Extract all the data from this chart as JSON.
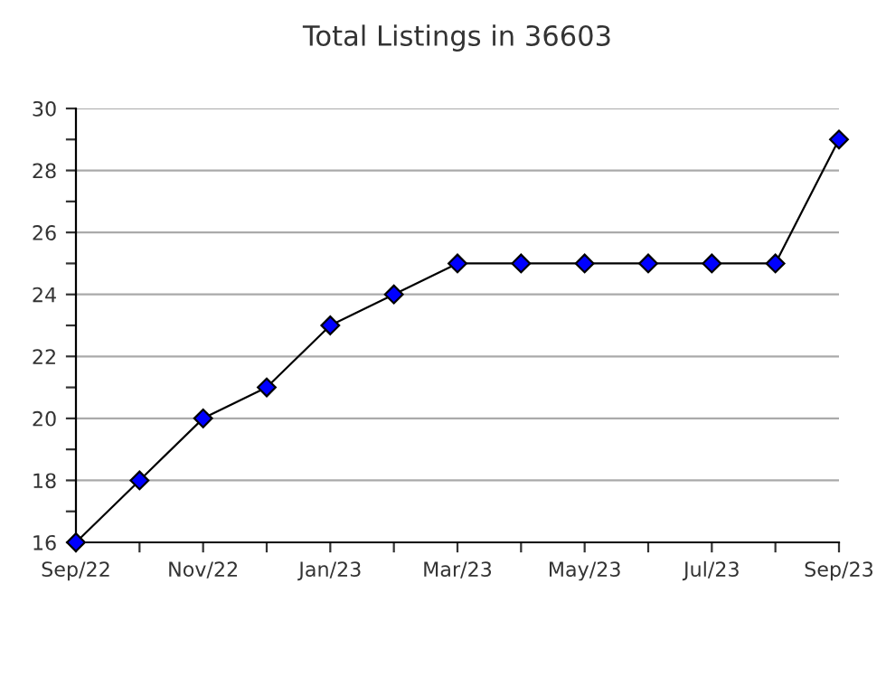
{
  "chart_data": {
    "type": "line",
    "title": "Total Listings in 36603",
    "categories": [
      "Sep/22",
      null,
      "Nov/22",
      null,
      "Jan/23",
      null,
      "Mar/23",
      null,
      "May/23",
      null,
      "Jul/23",
      null,
      "Sep/23"
    ],
    "series": [
      {
        "color": "#0000ff",
        "values": [
          16,
          18,
          20,
          21,
          23,
          24,
          25,
          25,
          25,
          25,
          25,
          25,
          29
        ]
      }
    ],
    "ylim": [
      16,
      30
    ],
    "yticks": [
      16,
      {
        "value": 17,
        "label": null
      },
      18,
      {
        "value": 19,
        "label": null
      },
      20,
      {
        "value": 21,
        "label": null
      },
      22,
      {
        "value": 23,
        "label": null
      },
      24,
      {
        "value": 25,
        "label": null
      },
      26,
      {
        "value": 27,
        "label": null
      },
      28,
      {
        "value": 29,
        "label": null
      },
      30
    ],
    "grid": "y",
    "marker": "diamond",
    "line_style": "solid"
  }
}
